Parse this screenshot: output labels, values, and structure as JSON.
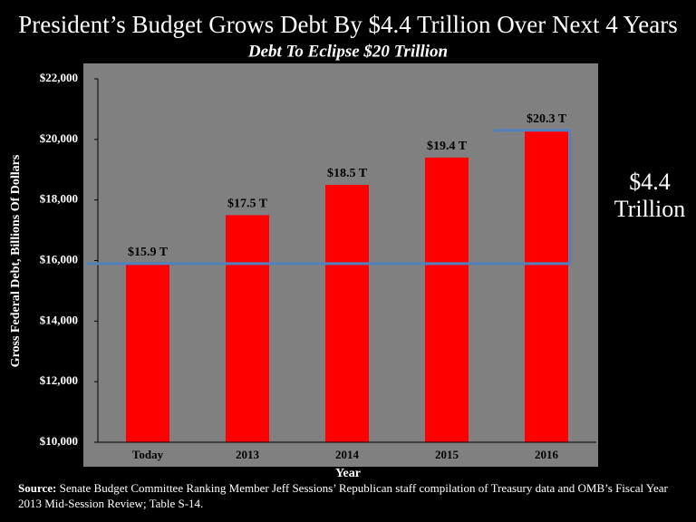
{
  "chart_data": {
    "type": "bar",
    "title": "President’s Budget Grows Debt By $4.4 Trillion Over Next 4 Years",
    "subtitle": "Debt To Eclipse $20 Trillion",
    "x_label": "Year",
    "y_label": "Gross Federal Debt, Billions Of Dollars",
    "categories": [
      "Today",
      "2013",
      "2014",
      "2015",
      "2016"
    ],
    "values": [
      15900,
      17500,
      18500,
      19400,
      20300
    ],
    "value_labels": [
      "$15.9 T",
      "$17.5 T",
      "$18.5 T",
      "$19.4 T",
      "$20.3 T"
    ],
    "color": "#ff0000",
    "ylim": [
      10000,
      22000
    ],
    "yticks": [
      {
        "value": 10000,
        "label": "$10,000"
      },
      {
        "value": 12000,
        "label": "$12,000"
      },
      {
        "value": 14000,
        "label": "$14,000"
      },
      {
        "value": 16000,
        "label": "$16,000"
      },
      {
        "value": 18000,
        "label": "$18,000"
      },
      {
        "value": 20000,
        "label": "$20,000"
      },
      {
        "value": 22000,
        "label": "$22,000"
      }
    ],
    "annotation": "$4.4 Trillion",
    "source_label": "Source:",
    "source": "Senate Budget Committee Ranking Member Jeff Sessions’ Republican staff compilation of Treasury data and OMB’s Fiscal Year 2013 Mid-Session Review; Table S-14."
  }
}
